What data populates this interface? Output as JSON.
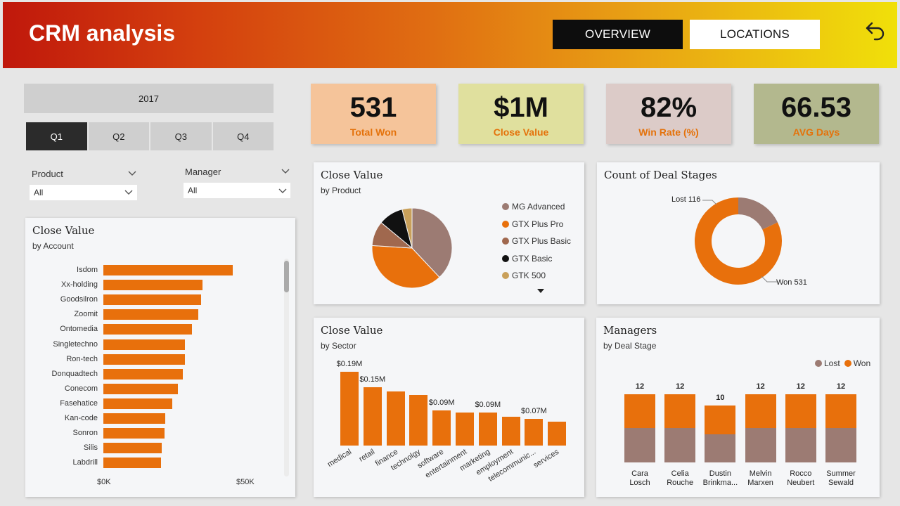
{
  "header": {
    "title": "CRM analysis",
    "nav_overview": "OVERVIEW",
    "nav_locations": "LOCATIONS"
  },
  "filters": {
    "year": "2017",
    "quarters": [
      "Q1",
      "Q2",
      "Q3",
      "Q4"
    ],
    "active_quarter": "Q1",
    "product_label": "Product",
    "product_value": "All",
    "manager_label": "Manager",
    "manager_value": "All"
  },
  "kpis": [
    {
      "value": "531",
      "label": "Total Won",
      "color": "#f5c49a"
    },
    {
      "value": "$1M",
      "label": "Close Value",
      "color": "#e0e09e"
    },
    {
      "value": "82%",
      "label": "Win Rate (%)",
      "color": "#dccbc8"
    },
    {
      "value": "66.53",
      "label": "AVG Days",
      "color": "#b3b88e"
    }
  ],
  "colors": {
    "accent": "#e8700c",
    "lost": "#9c7b73"
  },
  "account_chart": {
    "title": "Close Value",
    "subtitle": "by Account",
    "axis_min_label": "$0K",
    "axis_max_label": "$50K",
    "chart_data": {
      "type": "bar",
      "orientation": "horizontal",
      "categories": [
        "Isdom",
        "Xx-holding",
        "Goodsilron",
        "Zoomit",
        "Ontomedia",
        "Singletechno",
        "Ron-tech",
        "Donquadtech",
        "Conecom",
        "Fasehatice",
        "Kan-code",
        "Sonron",
        "Silis",
        "Labdrill"
      ],
      "values": [
        43,
        33,
        32.5,
        31.5,
        29.5,
        27,
        27,
        26.5,
        24.8,
        23,
        20.5,
        20.3,
        19.5,
        19.2
      ],
      "xlim": [
        0,
        50
      ],
      "unit": "$K"
    }
  },
  "product_chart": {
    "title": "Close Value",
    "subtitle": "by Product",
    "chart_data": {
      "type": "pie",
      "labels": [
        "MG Advanced",
        "GTX Plus Pro",
        "GTX Plus Basic",
        "GTX Basic",
        "GTK 500"
      ],
      "values": [
        38,
        38,
        10,
        10,
        4
      ],
      "colors": [
        "#9c7b73",
        "#e8700c",
        "#a0684e",
        "#111111",
        "#c9a05a"
      ]
    }
  },
  "stages_chart": {
    "title": "Count of Deal Stages",
    "lost_label": "Lost 116",
    "won_label": "Won 531",
    "chart_data": {
      "type": "pie",
      "labels": [
        "Lost",
        "Won"
      ],
      "values": [
        116,
        531
      ],
      "colors": [
        "#9c7b73",
        "#e8700c"
      ]
    }
  },
  "sector_chart": {
    "title": "Close Value",
    "subtitle": "by Sector",
    "chart_data": {
      "type": "bar",
      "categories": [
        "medical",
        "retail",
        "finance",
        "technolgy",
        "software",
        "entertainment",
        "marketing",
        "employment",
        "telecommunic...",
        "services"
      ],
      "values": [
        0.19,
        0.15,
        0.14,
        0.13,
        0.09,
        0.085,
        0.085,
        0.075,
        0.068,
        0.062
      ],
      "value_labels": [
        "$0.19M",
        "$0.15M",
        "",
        "",
        "$0.09M",
        "",
        "$0.09M",
        "",
        "$0.07M",
        ""
      ],
      "unit": "$M"
    }
  },
  "managers_chart": {
    "title": "Managers",
    "subtitle": "by Deal Stage",
    "legend": [
      "Lost",
      "Won"
    ],
    "chart_data": {
      "type": "bar",
      "stacked": true,
      "categories": [
        "Cara Losch",
        "Celia Rouche",
        "Dustin Brinkma...",
        "Melvin Marxen",
        "Rocco Neubert",
        "Summer Sewald"
      ],
      "name_lines": [
        [
          "Cara",
          "Losch"
        ],
        [
          "Celia",
          "Rouche"
        ],
        [
          "Dustin",
          "Brinkma..."
        ],
        [
          "Melvin",
          "Marxen"
        ],
        [
          "Rocco",
          "Neubert"
        ],
        [
          "Summer",
          "Sewald"
        ]
      ],
      "series": [
        {
          "name": "Lost",
          "values": [
            6,
            6,
            5,
            6,
            6,
            6
          ]
        },
        {
          "name": "Won",
          "values": [
            6,
            6,
            5,
            6,
            6,
            6
          ]
        }
      ],
      "totals": [
        12,
        12,
        10,
        12,
        12,
        12
      ]
    }
  }
}
